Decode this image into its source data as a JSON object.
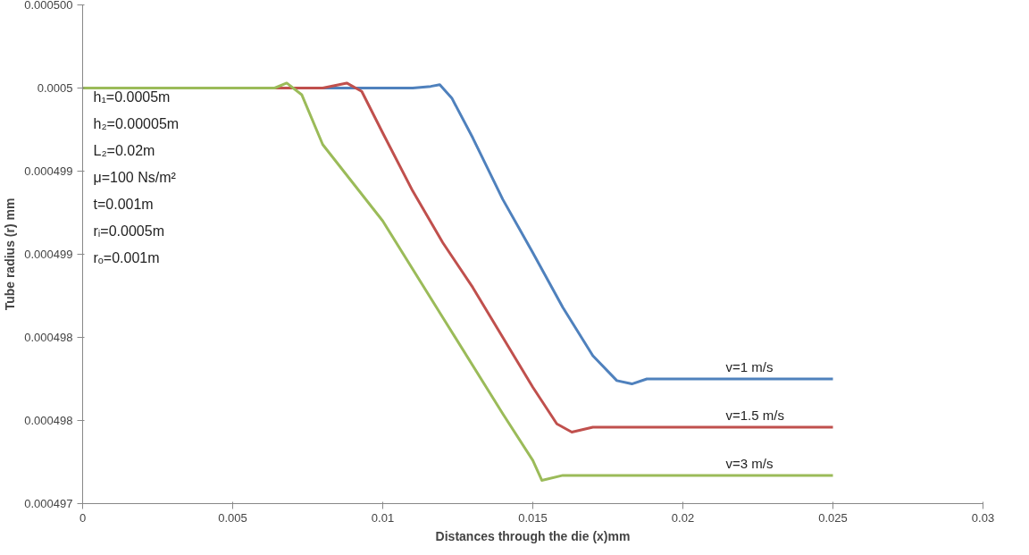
{
  "chart_data": {
    "type": "line",
    "xlabel": "Distances through the die (x)mm",
    "ylabel": "Tube radius (r) mm",
    "xlim": [
      0,
      0.03
    ],
    "xticks": [
      0,
      0.005,
      0.01,
      0.015,
      0.02,
      0.025,
      0.03
    ],
    "ylim": [
      0.0004975,
      0.0005005
    ],
    "yticks": [
      {
        "value": 0.0004975,
        "label": "0.000497"
      },
      {
        "value": 0.000498,
        "label": "0.000498"
      },
      {
        "value": 0.0004985,
        "label": "0.000498"
      },
      {
        "value": 0.000499,
        "label": "0.000499"
      },
      {
        "value": 0.0004995,
        "label": "0.000499"
      },
      {
        "value": 0.0005,
        "label": "0.0005"
      },
      {
        "value": 0.0005005,
        "label": "0.000500"
      }
    ],
    "grid": false,
    "marker": "none",
    "line_style": "solid",
    "annotations": [
      "h₁=0.0005m",
      "h₂=0.00005m",
      "L₂=0.02m",
      "μ=100 Ns/m²",
      "t=0.001m",
      "rᵢ=0.0005m",
      "rₒ=0.001m"
    ],
    "series": [
      {
        "name": "v=1 m/s",
        "color": "#4f81bd",
        "x": [
          0,
          0.011,
          0.0116,
          0.0119,
          0.0123,
          0.013,
          0.014,
          0.015,
          0.016,
          0.017,
          0.0178,
          0.0183,
          0.0188,
          0.02,
          0.025
        ],
        "values": [
          0.0005,
          0.0005,
          0.00050001,
          0.00050002,
          0.00049994,
          0.0004997,
          0.00049933,
          0.00049901,
          0.00049868,
          0.00049839,
          0.00049824,
          0.00049822,
          0.00049825,
          0.00049825,
          0.00049825
        ]
      },
      {
        "name": "v=1.5 m/s",
        "color": "#c0504d",
        "x": [
          0,
          0.008,
          0.0088,
          0.0093,
          0.01,
          0.011,
          0.012,
          0.013,
          0.014,
          0.015,
          0.0158,
          0.0163,
          0.017,
          0.025
        ],
        "values": [
          0.0005,
          0.0005,
          0.00050003,
          0.00049998,
          0.00049973,
          0.00049938,
          0.00049907,
          0.0004988,
          0.0004985,
          0.0004982,
          0.00049798,
          0.00049793,
          0.00049796,
          0.00049796
        ]
      },
      {
        "name": "v=3 m/s",
        "color": "#9bbb59",
        "x": [
          0,
          0.0064,
          0.0068,
          0.0073,
          0.008,
          0.01,
          0.012,
          0.014,
          0.015,
          0.0153,
          0.016,
          0.025
        ],
        "values": [
          0.0005,
          0.0005,
          0.00050003,
          0.00049996,
          0.00049966,
          0.0004992,
          0.00049862,
          0.00049804,
          0.00049776,
          0.00049764,
          0.00049767,
          0.00049767
        ]
      }
    ]
  }
}
